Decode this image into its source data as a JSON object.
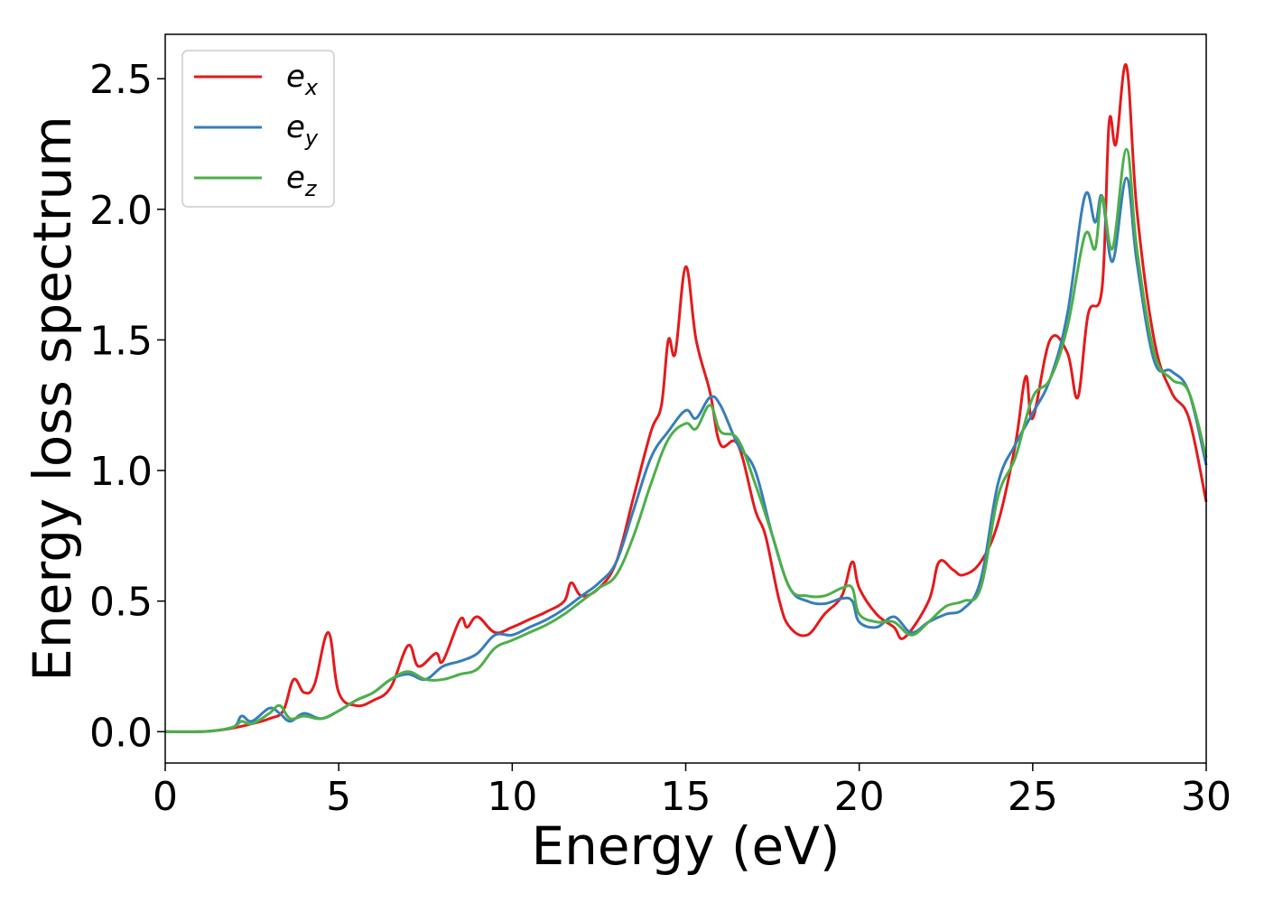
{
  "chart_data": {
    "type": "line",
    "xlabel": "Energy (eV)",
    "ylabel": "Energy loss spectrum",
    "xlim": [
      0,
      30
    ],
    "ylim": [
      -0.12,
      2.67
    ],
    "xticks": [
      "0",
      "5",
      "10",
      "15",
      "20",
      "25",
      "30"
    ],
    "yticks": [
      "0.0",
      "0.5",
      "1.0",
      "1.5",
      "2.0",
      "2.5"
    ],
    "grid": false,
    "legend_position": "top-left",
    "series": [
      {
        "name": "e",
        "subscript": "x",
        "color": "#e41a1c",
        "x": [
          0,
          1,
          1.5,
          2,
          2.5,
          3,
          3.4,
          3.7,
          4,
          4.3,
          4.7,
          5,
          5.5,
          6,
          6.5,
          7,
          7.3,
          7.8,
          8,
          8.5,
          8.7,
          9,
          9.5,
          10,
          10.5,
          11,
          11.5,
          11.7,
          12,
          12.5,
          13,
          13.5,
          14,
          14.3,
          14.5,
          14.7,
          15,
          15.3,
          15.7,
          16,
          16.5,
          17,
          17.3,
          17.7,
          18,
          18.5,
          19,
          19.5,
          19.8,
          20,
          20.5,
          21,
          21.3,
          22,
          22.3,
          22.7,
          23,
          23.5,
          24,
          24.5,
          24.8,
          25,
          25.5,
          26,
          26.3,
          26.6,
          27,
          27.2,
          27.4,
          27.7,
          28,
          28.5,
          29,
          29.5,
          30
        ],
        "y": [
          0.0,
          0.0,
          0.005,
          0.015,
          0.03,
          0.05,
          0.08,
          0.2,
          0.15,
          0.18,
          0.38,
          0.15,
          0.1,
          0.12,
          0.17,
          0.33,
          0.25,
          0.3,
          0.27,
          0.43,
          0.4,
          0.44,
          0.38,
          0.4,
          0.43,
          0.46,
          0.5,
          0.57,
          0.52,
          0.55,
          0.65,
          0.9,
          1.15,
          1.25,
          1.5,
          1.45,
          1.78,
          1.5,
          1.3,
          1.1,
          1.1,
          0.85,
          0.75,
          0.5,
          0.4,
          0.37,
          0.45,
          0.52,
          0.65,
          0.55,
          0.45,
          0.4,
          0.36,
          0.5,
          0.65,
          0.62,
          0.6,
          0.65,
          0.8,
          1.1,
          1.36,
          1.2,
          1.5,
          1.45,
          1.28,
          1.6,
          1.7,
          2.33,
          2.25,
          2.55,
          2.0,
          1.5,
          1.3,
          1.2,
          0.88
        ]
      },
      {
        "name": "e",
        "subscript": "y",
        "color": "#377eb8",
        "x": [
          0,
          1,
          1.5,
          2,
          2.2,
          2.5,
          3,
          3.3,
          3.6,
          4,
          4.5,
          5,
          5.5,
          6,
          6.5,
          7,
          7.5,
          8,
          8.5,
          9,
          9.5,
          10,
          10.5,
          11,
          11.5,
          12,
          12.5,
          13,
          13.5,
          14,
          14.5,
          15,
          15.3,
          15.7,
          16,
          16.5,
          17,
          17.5,
          18,
          18.5,
          19,
          19.5,
          19.8,
          20,
          20.5,
          21,
          21.5,
          22,
          22.5,
          23,
          23.5,
          24,
          24.5,
          25,
          25.5,
          26,
          26.5,
          26.8,
          27,
          27.3,
          27.7,
          28,
          28.5,
          29,
          29.5,
          30
        ],
        "y": [
          0.0,
          0.0,
          0.005,
          0.02,
          0.06,
          0.04,
          0.09,
          0.07,
          0.04,
          0.07,
          0.05,
          0.08,
          0.12,
          0.15,
          0.2,
          0.22,
          0.2,
          0.25,
          0.27,
          0.3,
          0.37,
          0.37,
          0.4,
          0.43,
          0.47,
          0.52,
          0.57,
          0.65,
          0.85,
          1.05,
          1.15,
          1.23,
          1.2,
          1.28,
          1.25,
          1.1,
          1.0,
          0.75,
          0.55,
          0.5,
          0.49,
          0.51,
          0.5,
          0.42,
          0.4,
          0.44,
          0.38,
          0.42,
          0.45,
          0.47,
          0.58,
          0.95,
          1.1,
          1.22,
          1.35,
          1.6,
          2.05,
          1.95,
          2.05,
          1.8,
          2.12,
          1.8,
          1.42,
          1.38,
          1.3,
          1.02
        ]
      },
      {
        "name": "e",
        "subscript": "z",
        "color": "#4daf4a",
        "x": [
          0,
          1,
          1.5,
          2,
          2.2,
          2.5,
          3,
          3.3,
          3.6,
          4,
          4.5,
          5,
          5.5,
          6,
          6.5,
          7,
          7.5,
          8,
          8.5,
          9,
          9.5,
          10,
          10.5,
          11,
          11.5,
          12,
          12.5,
          13,
          13.5,
          14,
          14.5,
          15,
          15.3,
          15.7,
          16,
          16.5,
          17,
          17.5,
          18,
          18.5,
          19,
          19.5,
          19.8,
          20,
          20.5,
          21,
          21.5,
          22,
          22.5,
          23,
          23.5,
          24,
          24.5,
          25,
          25.5,
          26,
          26.5,
          26.8,
          27,
          27.3,
          27.7,
          28,
          28.5,
          29,
          29.5,
          30
        ],
        "y": [
          0.0,
          0.0,
          0.005,
          0.02,
          0.04,
          0.03,
          0.07,
          0.1,
          0.05,
          0.06,
          0.05,
          0.08,
          0.12,
          0.15,
          0.2,
          0.23,
          0.2,
          0.2,
          0.22,
          0.24,
          0.32,
          0.35,
          0.38,
          0.41,
          0.45,
          0.5,
          0.55,
          0.6,
          0.75,
          0.95,
          1.12,
          1.18,
          1.16,
          1.25,
          1.15,
          1.12,
          0.95,
          0.75,
          0.55,
          0.52,
          0.52,
          0.55,
          0.55,
          0.45,
          0.42,
          0.42,
          0.37,
          0.42,
          0.48,
          0.5,
          0.55,
          0.9,
          1.05,
          1.28,
          1.35,
          1.55,
          1.9,
          1.85,
          2.05,
          1.85,
          2.23,
          1.85,
          1.45,
          1.35,
          1.3,
          1.05
        ]
      }
    ]
  }
}
